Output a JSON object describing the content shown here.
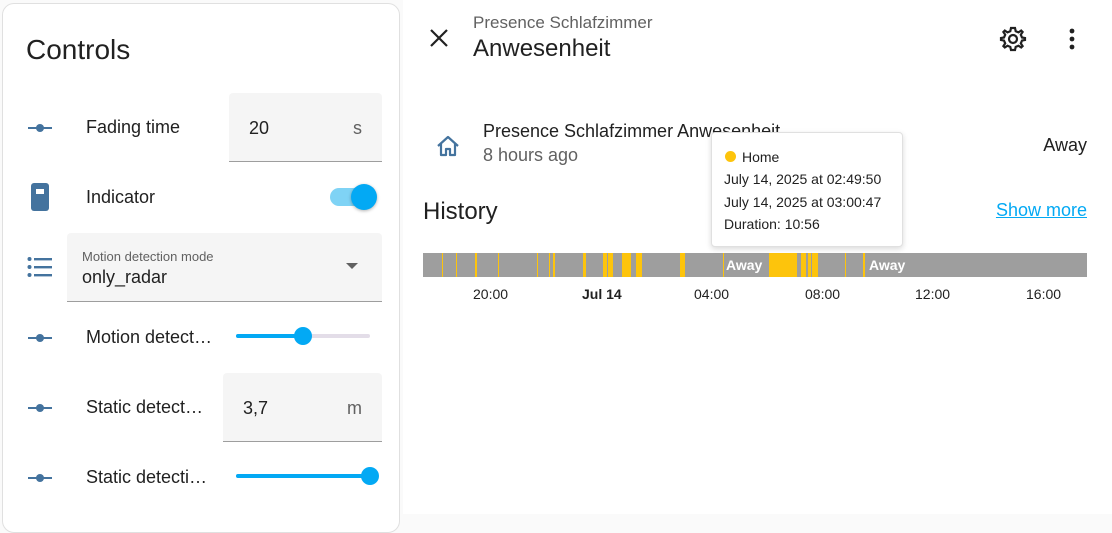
{
  "controls": {
    "title": "Controls",
    "fading_time": {
      "label": "Fading time",
      "value": "20",
      "unit": "s"
    },
    "indicator": {
      "label": "Indicator",
      "on": true
    },
    "motion_mode": {
      "label": "Motion detection mode",
      "value": "only_radar"
    },
    "motion_distance": {
      "label": "Motion detect…",
      "level": 0.5
    },
    "static_distance": {
      "label": "Static detect…",
      "value": "3,7",
      "unit": "m"
    },
    "static_sensitivity": {
      "label": "Static detecti…",
      "level": 1.0
    }
  },
  "dialog": {
    "subtitle": "Presence Schlafzimmer",
    "title": "Anwesenheit",
    "entity": {
      "name": "Presence Schlafzimmer Anwesenheit",
      "time": "8 hours ago",
      "state": "Away"
    },
    "history": {
      "title": "History",
      "show_more": "Show more",
      "away_labels": [
        "Away",
        "Away"
      ],
      "axis": [
        "20:00",
        "Jul 14",
        "04:00",
        "08:00",
        "12:00",
        "16:00"
      ]
    },
    "tooltip": {
      "state": "Home",
      "start": "July 14, 2025 at 02:49:50",
      "end": "July 14, 2025 at 03:00:47",
      "duration": "Duration: 10:56"
    }
  },
  "colors": {
    "accent": "#03a9f4",
    "home": "#fdc40c",
    "away": "#9e9e9e",
    "icon": "#44739e"
  }
}
